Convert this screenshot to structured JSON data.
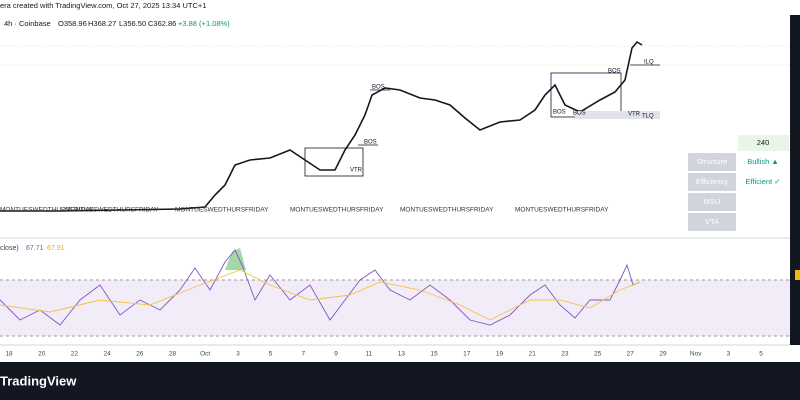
{
  "header": {
    "title": "era created with TradingView.com, Oct 27, 2025 13:34 UTC+1",
    "symbol": "4h · Coinbase",
    "open": "O358.96",
    "high": "H368.27",
    "low": "L356.50",
    "close": "C362.86",
    "change": "+3.88 (+1.08%)"
  },
  "annotations": [
    "BOS",
    "BOS",
    "VTR",
    "BOS",
    "BOS",
    "BOS",
    "VTR",
    "TLQ",
    "ILQ"
  ],
  "weekdays": [
    "MONTUESWEDTHURSFRIDAY",
    "MONTUESWEDTHURSFRIDAY",
    "MONTUESWEDTHURSFRIDAY",
    "MONTUESWEDTHURSFRIDAY",
    "MONTUESWEDTHURSFRIDAY",
    "MONTUESWEDTHURSFRIDAY"
  ],
  "panel": {
    "timeframe": "240",
    "structure": "Structure",
    "structure_state": "Bullish ▲",
    "efficiency": "Efficiency",
    "efficiency_state": "Efficient ✓",
    "msu": "MSU",
    "vta": "VTA"
  },
  "rsi": {
    "label": "close)",
    "value": "67.71",
    "average": "67.91"
  },
  "time_axis": [
    "18",
    "20",
    "22",
    "24",
    "26",
    "28",
    "Oct",
    "3",
    "5",
    "7",
    "9",
    "11",
    "13",
    "15",
    "17",
    "19",
    "21",
    "23",
    "25",
    "27",
    "29",
    "Nov",
    "3",
    "5"
  ],
  "logo": "TradingView"
}
